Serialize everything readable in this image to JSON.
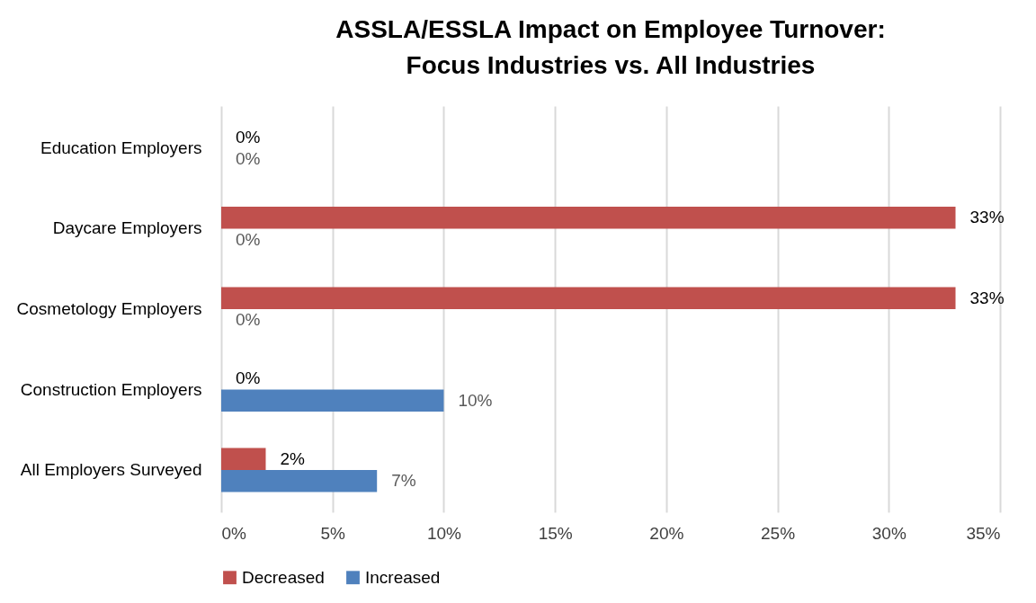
{
  "chart_data": {
    "type": "bar",
    "orientation": "horizontal",
    "title": "ASSLA/ESSLA Impact on Employee Turnover:\nFocus Industries vs. All Industries",
    "categories": [
      "Education Employers",
      "Daycare Employers",
      "Cosmetology Employers",
      "Construction Employers",
      "All Employers Surveyed"
    ],
    "series": [
      {
        "name": "Decreased",
        "color": "#c0504d",
        "values": [
          0,
          33,
          33,
          0,
          2
        ],
        "value_labels": [
          "0%",
          "33%",
          "33%",
          "0%",
          "2%"
        ]
      },
      {
        "name": "Increased",
        "color": "#4f81bd",
        "values": [
          0,
          0,
          0,
          10,
          7
        ],
        "value_labels": [
          "0%",
          "0%",
          "0%",
          "10%",
          "7%"
        ]
      }
    ],
    "xlim": [
      0,
      35
    ],
    "xticks": [
      {
        "value": 0,
        "label": "0%"
      },
      {
        "value": 5,
        "label": "5%"
      },
      {
        "value": 10,
        "label": "10%"
      },
      {
        "value": 15,
        "label": "15%"
      },
      {
        "value": 20,
        "label": "20%"
      },
      {
        "value": 25,
        "label": "25%"
      },
      {
        "value": 30,
        "label": "30%"
      },
      {
        "value": 35,
        "label": "35%"
      }
    ],
    "grid": "x",
    "legend": "bottom"
  }
}
